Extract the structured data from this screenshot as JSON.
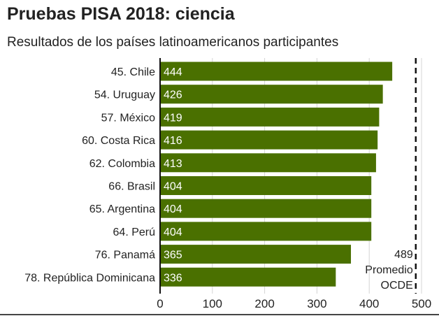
{
  "chart_data": {
    "type": "bar",
    "orientation": "horizontal",
    "title": "Pruebas PISA 2018: ciencia",
    "subtitle": "Resultados de los países latinoamericanos participantes",
    "categories": [
      "45. Chile",
      "54. Uruguay",
      "57. México",
      "60. Costa Rica",
      "62. Colombia",
      "66. Brasil",
      "65. Argentina",
      "64. Perú",
      "76. Panamá",
      "78. República Dominicana"
    ],
    "values": [
      444,
      426,
      419,
      416,
      413,
      404,
      404,
      404,
      365,
      336
    ],
    "xlim": [
      0,
      500
    ],
    "xticks": [
      0,
      100,
      200,
      300,
      400,
      500
    ],
    "grid": true,
    "bar_color": "#4a7000",
    "data_label_color": "#ffffff",
    "reference_line": {
      "value": 489,
      "label_lines": [
        "489",
        "Promedio",
        "OCDE"
      ],
      "style": "dashed",
      "color": "#111111"
    }
  }
}
